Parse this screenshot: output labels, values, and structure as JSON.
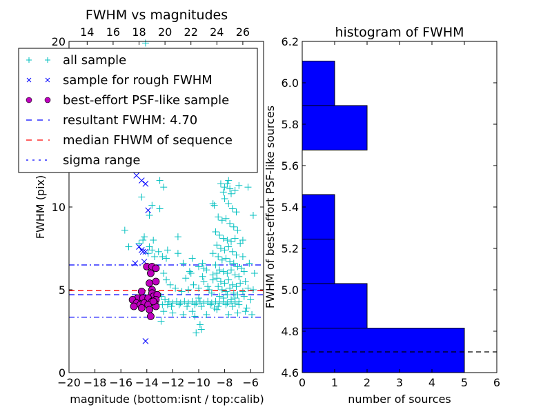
{
  "chart_data": [
    {
      "type": "scatter",
      "title": "FWHM vs magnitudes",
      "xlabel": "magnitude (bottom:isnt / top:calib)",
      "ylabel": "FWHM (pix)",
      "xlim": [
        -20,
        -5
      ],
      "ylim": [
        0,
        20
      ],
      "xticks": [
        -20,
        -18,
        -16,
        -14,
        -12,
        -10,
        -8,
        -6
      ],
      "xtick_labels": [
        "−20",
        "−18",
        "−16",
        "−14",
        "−12",
        "−10",
        "−8",
        "−6"
      ],
      "yticks": [
        0,
        5,
        10,
        20
      ],
      "ytick_labels": [
        "0",
        "5",
        "10",
        "20"
      ],
      "top_axis": {
        "ticks": [
          -18.6,
          -16.6,
          -14.6,
          -12.6,
          -10.6,
          -8.6,
          -6.6
        ],
        "labels": [
          "14",
          "16",
          "18",
          "20",
          "22",
          "24",
          "26"
        ]
      },
      "legend": {
        "placement": "upper-left",
        "entries": [
          {
            "label": "all sample",
            "marker": "plus",
            "color": "#00bfbf"
          },
          {
            "label": "sample for rough FWHM",
            "marker": "x",
            "color": "#0000ff"
          },
          {
            "label": "best-effort PSF-like sample",
            "marker": "circle",
            "color": "#bf00bf"
          },
          {
            "label": "resultant FWHM: 4.70",
            "marker": "dashed",
            "color": "#0000ff"
          },
          {
            "label": "median FHWM of sequence",
            "marker": "dashed",
            "color": "#ff0000"
          },
          {
            "label": "sigma range",
            "marker": "dashdot",
            "color": "#0000ff"
          }
        ]
      },
      "hlines": [
        {
          "name": "resultant-fwhm",
          "y": 4.7,
          "color": "#0000ff",
          "style": "dashed"
        },
        {
          "name": "median-fwhm",
          "y": 4.95,
          "color": "#ff0000",
          "style": "dashed"
        },
        {
          "name": "sigma-upper",
          "y": 6.5,
          "color": "#0000ff",
          "style": "dashdot"
        },
        {
          "name": "sigma-lower",
          "y": 3.35,
          "color": "#0000ff",
          "style": "dashdot"
        }
      ],
      "series": [
        {
          "name": "all sample",
          "marker": "plus",
          "color": "#00bfbf",
          "points": [
            [
              -14.1,
              19.9
            ],
            [
              -14.1,
              13.0
            ],
            [
              -13.0,
              11.6
            ],
            [
              -12.7,
              11.2
            ],
            [
              -14.4,
              10.6
            ],
            [
              -13.6,
              10.1
            ],
            [
              -13.0,
              9.9
            ],
            [
              -13.8,
              9.5
            ],
            [
              -15.7,
              8.6
            ],
            [
              -14.2,
              8.2
            ],
            [
              -14.3,
              8.0
            ],
            [
              -13.5,
              8.0
            ],
            [
              -13.8,
              7.6
            ],
            [
              -13.6,
              7.4
            ],
            [
              -13.1,
              7.3
            ],
            [
              -12.4,
              7.4
            ],
            [
              -15.4,
              7.6
            ],
            [
              -14.6,
              7.8
            ],
            [
              -13.9,
              7.2
            ],
            [
              -13.4,
              7.0
            ],
            [
              -12.8,
              7.0
            ],
            [
              -12.5,
              6.9
            ],
            [
              -11.6,
              8.2
            ],
            [
              -11.6,
              7.2
            ],
            [
              -10.5,
              6.9
            ],
            [
              -11.2,
              6.6
            ],
            [
              -10.7,
              6.1
            ],
            [
              -10.6,
              6.0
            ],
            [
              -11.0,
              5.7
            ],
            [
              -10.0,
              6.4
            ],
            [
              -9.7,
              6.6
            ],
            [
              -9.4,
              6.2
            ],
            [
              -12.7,
              6.0
            ],
            [
              -12.5,
              5.6
            ],
            [
              -12.2,
              5.3
            ],
            [
              -11.8,
              5.1
            ],
            [
              -11.3,
              4.9
            ],
            [
              -10.8,
              5.0
            ],
            [
              -10.4,
              5.3
            ],
            [
              -10.0,
              5.1
            ],
            [
              -9.6,
              5.5
            ],
            [
              -9.2,
              5.0
            ],
            [
              -8.9,
              5.6
            ],
            [
              -8.6,
              6.0
            ],
            [
              -12.9,
              4.6
            ],
            [
              -12.6,
              4.4
            ],
            [
              -12.3,
              4.3
            ],
            [
              -12.0,
              4.2
            ],
            [
              -11.7,
              4.3
            ],
            [
              -11.4,
              4.2
            ],
            [
              -11.1,
              4.3
            ],
            [
              -10.8,
              4.2
            ],
            [
              -10.5,
              4.3
            ],
            [
              -10.2,
              4.2
            ],
            [
              -9.9,
              4.3
            ],
            [
              -9.6,
              4.2
            ],
            [
              -9.3,
              4.3
            ],
            [
              -9.0,
              4.2
            ],
            [
              -8.7,
              4.3
            ],
            [
              -8.4,
              4.2
            ],
            [
              -8.1,
              4.3
            ],
            [
              -7.8,
              4.2
            ],
            [
              -7.5,
              4.3
            ],
            [
              -7.2,
              4.2
            ],
            [
              -12.8,
              4.1
            ],
            [
              -12.4,
              4.1
            ],
            [
              -12.1,
              4.0
            ],
            [
              -11.5,
              4.1
            ],
            [
              -10.9,
              4.0
            ],
            [
              -10.3,
              4.1
            ],
            [
              -9.8,
              4.0
            ],
            [
              -9.1,
              4.1
            ],
            [
              -8.5,
              4.0
            ],
            [
              -7.9,
              4.1
            ],
            [
              -7.4,
              4.0
            ],
            [
              -6.9,
              4.1
            ],
            [
              -12.7,
              3.7
            ],
            [
              -12.0,
              3.6
            ],
            [
              -11.2,
              3.5
            ],
            [
              -10.5,
              3.7
            ],
            [
              -9.4,
              3.5
            ],
            [
              -8.6,
              3.8
            ],
            [
              -7.7,
              3.5
            ],
            [
              -7.0,
              3.6
            ],
            [
              -6.4,
              3.7
            ],
            [
              -12.9,
              3.1
            ],
            [
              -10.3,
              3.4
            ],
            [
              -9.9,
              2.9
            ],
            [
              -10.2,
              2.4
            ],
            [
              -9.8,
              2.6
            ],
            [
              -8.3,
              11.4
            ],
            [
              -8.0,
              11.2
            ],
            [
              -7.8,
              11.4
            ],
            [
              -7.6,
              11.1
            ],
            [
              -7.2,
              11.0
            ],
            [
              -6.9,
              11.3
            ],
            [
              -8.1,
              10.9
            ],
            [
              -7.5,
              10.8
            ],
            [
              -8.0,
              10.5
            ],
            [
              -7.7,
              10.2
            ],
            [
              -7.4,
              9.9
            ],
            [
              -8.8,
              10.1
            ],
            [
              -7.1,
              9.7
            ],
            [
              -8.5,
              9.4
            ],
            [
              -8.2,
              9.2
            ],
            [
              -7.9,
              9.3
            ],
            [
              -7.6,
              9.0
            ],
            [
              -7.3,
              8.8
            ],
            [
              -7.0,
              8.6
            ],
            [
              -8.7,
              8.5
            ],
            [
              -8.4,
              8.3
            ],
            [
              -8.1,
              8.1
            ],
            [
              -7.8,
              8.0
            ],
            [
              -7.5,
              7.9
            ],
            [
              -7.2,
              8.1
            ],
            [
              -6.8,
              7.8
            ],
            [
              -8.6,
              7.7
            ],
            [
              -8.3,
              7.5
            ],
            [
              -8.0,
              7.4
            ],
            [
              -7.7,
              7.6
            ],
            [
              -7.4,
              7.3
            ],
            [
              -7.1,
              7.1
            ],
            [
              -6.6,
              7.0
            ],
            [
              -8.9,
              7.2
            ],
            [
              -8.5,
              7.0
            ],
            [
              -8.2,
              6.8
            ],
            [
              -7.9,
              6.9
            ],
            [
              -7.6,
              6.7
            ],
            [
              -7.3,
              6.6
            ],
            [
              -7.0,
              6.4
            ],
            [
              -6.7,
              6.3
            ],
            [
              -8.7,
              6.5
            ],
            [
              -8.4,
              6.2
            ],
            [
              -8.1,
              6.1
            ],
            [
              -7.8,
              6.0
            ],
            [
              -7.5,
              6.2
            ],
            [
              -7.2,
              5.9
            ],
            [
              -6.9,
              5.8
            ],
            [
              -6.5,
              6.1
            ],
            [
              -8.9,
              5.9
            ],
            [
              -8.6,
              5.7
            ],
            [
              -8.3,
              5.5
            ],
            [
              -8.0,
              5.4
            ],
            [
              -7.7,
              5.6
            ],
            [
              -7.4,
              5.3
            ],
            [
              -7.1,
              5.2
            ],
            [
              -6.8,
              5.4
            ],
            [
              -6.4,
              5.5
            ],
            [
              -8.5,
              5.2
            ],
            [
              -8.2,
              5.0
            ],
            [
              -7.9,
              4.9
            ],
            [
              -7.6,
              5.1
            ],
            [
              -7.3,
              4.8
            ],
            [
              -7.0,
              4.7
            ],
            [
              -6.6,
              4.9
            ],
            [
              -6.2,
              5.1
            ],
            [
              -8.4,
              4.6
            ],
            [
              -8.1,
              4.5
            ],
            [
              -7.8,
              4.7
            ],
            [
              -7.5,
              4.4
            ],
            [
              -7.2,
              4.5
            ],
            [
              -6.9,
              4.3
            ],
            [
              -6.5,
              4.6
            ],
            [
              -6.0,
              4.4
            ],
            [
              -5.8,
              5.0
            ],
            [
              -6.3,
              3.9
            ],
            [
              -5.9,
              3.5
            ],
            [
              -6.1,
              6.6
            ],
            [
              -5.7,
              6.0
            ],
            [
              -6.6,
              8.0
            ],
            [
              -6.2,
              11.2
            ],
            [
              -5.8,
              9.5
            ],
            [
              -7.7,
              11.6
            ],
            [
              -8.9,
              10.2
            ],
            [
              -9.6,
              6.3
            ],
            [
              -9.3,
              5.2
            ],
            [
              -9.0,
              4.8
            ],
            [
              -10.0,
              4.5
            ],
            [
              -9.7,
              5.8
            ],
            [
              -8.8,
              3.9
            ]
          ]
        },
        {
          "name": "sample for rough FWHM",
          "marker": "x",
          "color": "#0000ff",
          "points": [
            [
              -14.8,
              11.9
            ],
            [
              -14.4,
              11.6
            ],
            [
              -14.1,
              11.4
            ],
            [
              -13.9,
              9.8
            ],
            [
              -14.6,
              7.6
            ],
            [
              -14.4,
              7.4
            ],
            [
              -14.3,
              7.3
            ],
            [
              -14.1,
              7.3
            ],
            [
              -14.9,
              6.6
            ],
            [
              -14.2,
              6.7
            ],
            [
              -14.1,
              1.9
            ]
          ]
        },
        {
          "name": "best-effort PSF-like sample",
          "marker": "circle",
          "color": "#bf00bf",
          "points": [
            [
              -14.0,
              6.4
            ],
            [
              -13.6,
              6.4
            ],
            [
              -13.3,
              6.3
            ],
            [
              -13.7,
              6.0
            ],
            [
              -13.8,
              5.4
            ],
            [
              -13.3,
              5.5
            ],
            [
              -13.6,
              5.0
            ],
            [
              -13.6,
              4.8
            ],
            [
              -14.4,
              4.9
            ],
            [
              -13.5,
              4.6
            ],
            [
              -13.2,
              4.7
            ],
            [
              -14.7,
              4.5
            ],
            [
              -14.3,
              4.5
            ],
            [
              -13.9,
              4.5
            ],
            [
              -13.6,
              4.3
            ],
            [
              -13.3,
              4.4
            ],
            [
              -15.1,
              4.4
            ],
            [
              -14.8,
              4.2
            ],
            [
              -14.5,
              4.1
            ],
            [
              -14.2,
              4.2
            ],
            [
              -13.9,
              4.1
            ],
            [
              -13.4,
              4.2
            ],
            [
              -13.3,
              4.0
            ],
            [
              -15.0,
              4.0
            ],
            [
              -14.4,
              3.9
            ],
            [
              -13.8,
              3.8
            ],
            [
              -13.5,
              4.3
            ],
            [
              -13.7,
              3.4
            ]
          ]
        }
      ]
    },
    {
      "type": "bar",
      "orientation": "horizontal",
      "title": "histogram of FWHM",
      "xlabel": "number of sources",
      "ylabel": "FWHM of best-effort PSF-like sources",
      "xlim": [
        0,
        6
      ],
      "ylim": [
        4.6,
        6.2
      ],
      "xticks": [
        0,
        1,
        2,
        3,
        4,
        5,
        6
      ],
      "xtick_labels": [
        "0",
        "1",
        "2",
        "3",
        "4",
        "5",
        "6"
      ],
      "yticks": [
        4.6,
        4.8,
        5.0,
        5.2,
        5.4,
        5.6,
        5.8,
        6.0,
        6.2
      ],
      "ytick_labels": [
        "4.6",
        "4.8",
        "5.0",
        "5.2",
        "5.4",
        "5.6",
        "5.8",
        "6.0",
        "6.2"
      ],
      "bin_edges": [
        4.6,
        4.815,
        5.03,
        5.245,
        5.46,
        5.675,
        5.89,
        6.105
      ],
      "values": [
        5,
        2,
        1,
        1,
        0,
        2,
        1
      ],
      "bar_color": "#0000ff",
      "hline": {
        "y": 4.7,
        "color": "#000000",
        "style": "dashed"
      }
    }
  ]
}
